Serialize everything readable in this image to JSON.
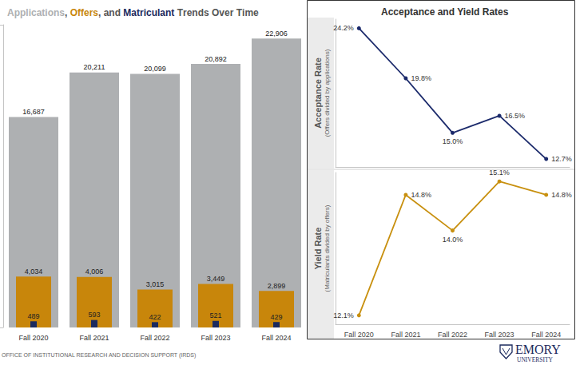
{
  "chart_data": [
    {
      "type": "bar",
      "title": "Applications, Offers, and Matriculant Trends Over Time",
      "categories": [
        "Fall 2020",
        "Fall 2021",
        "Fall 2022",
        "Fall 2023",
        "Fall 2024"
      ],
      "series": [
        {
          "name": "Applications",
          "color": "#AEB0B2",
          "values": [
            16687,
            20211,
            20099,
            20892,
            22906
          ],
          "value_labels": [
            "16,687",
            "20,211",
            "20,099",
            "20,892",
            "22,906"
          ]
        },
        {
          "name": "Offers",
          "color": "#C8860B",
          "values": [
            4034,
            4006,
            3015,
            3449,
            2899
          ],
          "value_labels": [
            "4,034",
            "4,006",
            "3,015",
            "3,449",
            "2,899"
          ]
        },
        {
          "name": "Matriculant",
          "color": "#1B2A5E",
          "values": [
            489,
            593,
            422,
            521,
            429
          ]
        }
      ],
      "ylim": [
        0,
        24000
      ],
      "yticks": [
        0,
        24000
      ],
      "data_labels": true,
      "tick_labels": "x",
      "grid": false,
      "stacked": false
    },
    {
      "type": "line",
      "title": "Acceptance and Yield Rates",
      "ylabel": [
        "Acceptance Rate",
        "(Offers divided by applications)"
      ],
      "categories": [
        "Fall 2020",
        "Fall 2021",
        "Fall 2022",
        "Fall 2023",
        "Fall 2024"
      ],
      "values": [
        24.2,
        19.8,
        15.0,
        16.5,
        12.7
      ],
      "value_labels": [
        "24.2%",
        "19.8%",
        "15.0%",
        "16.5%",
        "12.7%"
      ],
      "color": "#1B2A6B",
      "marker": "circle",
      "ylim": [
        12,
        25
      ],
      "yticks": [],
      "data_labels": true,
      "tick_labels": false,
      "grid": false
    },
    {
      "type": "line",
      "ylabel": [
        "Yield Rate",
        "(Matriculants divided by offers)"
      ],
      "categories": [
        "Fall 2020",
        "Fall 2021",
        "Fall 2022",
        "Fall 2023",
        "Fall 2024"
      ],
      "values": [
        12.1,
        14.8,
        14.0,
        15.1,
        14.8
      ],
      "value_labels": [
        "12.1%",
        "14.8%",
        "14.0%",
        "15.1%",
        "14.8%"
      ],
      "color": "#C8900F",
      "marker": "circle",
      "ylim": [
        11.9,
        15.3
      ],
      "yticks": [],
      "data_labels": true,
      "tick_labels": "x",
      "grid": false
    }
  ],
  "footer": "OFFICE OF INSTITUTIONAL RESEARCH AND DECISION SUPPORT (IRDS)",
  "logo": [
    "EMORY",
    "UNIVERSITY"
  ]
}
